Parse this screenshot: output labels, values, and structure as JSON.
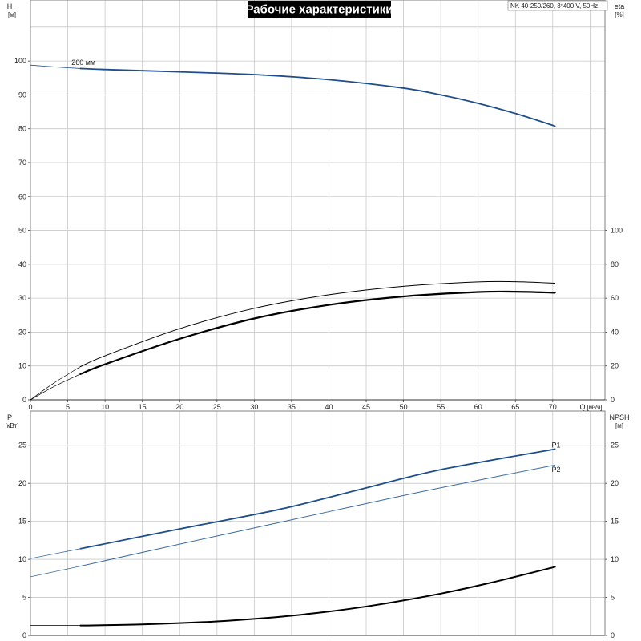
{
  "title": "Рабочие характеристики",
  "model": "NK 40-250/260, 3*400 V, 50Hz",
  "colors": {
    "blue": "#1f4e8c",
    "blue_light": "#3a6aa0",
    "black": "#000000",
    "grid": "#c8c8c8",
    "frame": "#808080"
  },
  "chart_data": [
    {
      "type": "line",
      "panel": "upper",
      "x_label": "Q",
      "x_unit": "[м³/ч]",
      "x_ticks": [
        "0",
        "5",
        "10",
        "15",
        "20",
        "25",
        "30",
        "35",
        "40",
        "45",
        "50",
        "55",
        "60",
        "65",
        "70"
      ],
      "xlim": [
        0,
        77
      ],
      "y_label": "H",
      "y_unit": "[м]",
      "y_ticks": [
        "0",
        "10",
        "20",
        "30",
        "40",
        "50",
        "60",
        "70",
        "80",
        "90",
        "100"
      ],
      "ylim": [
        0,
        118
      ],
      "y2_label": "eta",
      "y2_unit": "[%]",
      "y2_ticks": [
        "0",
        "20",
        "40",
        "60",
        "80",
        "100"
      ],
      "y2lim": [
        0,
        236
      ],
      "grid": true,
      "annotations": [
        {
          "text": "260 мм",
          "x": 5.5,
          "y": 99.5
        }
      ],
      "series": [
        {
          "key": "H",
          "axis": "left",
          "color": "#1f4e8c",
          "width": 1.8,
          "x": [
            6.7,
            10,
            20,
            30,
            40,
            50,
            55,
            60,
            65,
            70.3
          ],
          "y": [
            97.8,
            97.5,
            96.8,
            96.0,
            94.5,
            92.0,
            90.0,
            87.5,
            84.5,
            80.8
          ]
        },
        {
          "key": "H_ext",
          "axis": "left",
          "color": "#1f4e8c",
          "width": 0.8,
          "x": [
            0,
            3,
            6.7
          ],
          "y": [
            98.8,
            98.3,
            97.8
          ]
        },
        {
          "key": "eta_thin",
          "axis": "right",
          "color": "#000000",
          "width": 1.0,
          "x": [
            6.7,
            10,
            20,
            30,
            40,
            50,
            60,
            65,
            70.3
          ],
          "y": [
            19.6,
            26,
            42,
            54,
            62,
            67,
            69.6,
            69.7,
            68.8
          ]
        },
        {
          "key": "eta_thin_ext",
          "axis": "right",
          "color": "#000000",
          "width": 0.7,
          "x": [
            0,
            3,
            6.7
          ],
          "y": [
            0,
            9.5,
            19.6
          ]
        },
        {
          "key": "eta_bold",
          "axis": "right",
          "color": "#000000",
          "width": 2.2,
          "x": [
            6.7,
            10,
            20,
            30,
            40,
            50,
            60,
            65,
            70.3
          ],
          "y": [
            15.2,
            21,
            36,
            48,
            56,
            61,
            63.6,
            63.8,
            63.2
          ]
        },
        {
          "key": "eta_bold_ext",
          "axis": "right",
          "color": "#000000",
          "width": 0.7,
          "x": [
            0,
            3,
            6.7
          ],
          "y": [
            0,
            7.5,
            15.2
          ]
        }
      ]
    },
    {
      "type": "line",
      "panel": "lower",
      "x_ticks": [],
      "xlim": [
        0,
        77
      ],
      "y_label": "P",
      "y_unit": "[кВт]",
      "y_ticks": [
        "0",
        "5",
        "10",
        "15",
        "20",
        "25"
      ],
      "ylim": [
        0,
        29.5
      ],
      "y2_label": "NPSH",
      "y2_unit": "[м]",
      "y2_ticks": [
        "0",
        "5",
        "10",
        "15",
        "20",
        "25"
      ],
      "y2lim": [
        0,
        29.5
      ],
      "grid": true,
      "labels": [
        {
          "text": "P1",
          "x": 70.5,
          "y": 25.0,
          "color": "#1f4e8c"
        },
        {
          "text": "P2",
          "x": 70.5,
          "y": 21.8,
          "color": "#1f4e8c"
        }
      ],
      "series": [
        {
          "key": "P1",
          "name": "P1",
          "axis": "left",
          "color": "#1f4e8c",
          "width": 1.8,
          "x": [
            6.7,
            20,
            33.5,
            45,
            55,
            70.3
          ],
          "y": [
            11.4,
            14.0,
            16.6,
            19.4,
            21.8,
            24.5
          ]
        },
        {
          "key": "P1_ext",
          "axis": "left",
          "color": "#3a6aa0",
          "width": 0.8,
          "x": [
            0,
            6.7
          ],
          "y": [
            10.1,
            11.4
          ]
        },
        {
          "key": "P2",
          "name": "P2",
          "axis": "left",
          "color": "#3a6aa0",
          "width": 1.0,
          "x": [
            6.7,
            20,
            35,
            50,
            60,
            70.3
          ],
          "y": [
            9.1,
            12.0,
            15.2,
            18.4,
            20.4,
            22.4
          ]
        },
        {
          "key": "P2_ext",
          "axis": "left",
          "color": "#3a6aa0",
          "width": 0.8,
          "x": [
            0,
            6.7
          ],
          "y": [
            7.7,
            9.1
          ]
        },
        {
          "key": "NPSH",
          "axis": "right",
          "color": "#000000",
          "width": 2.0,
          "x": [
            6.7,
            15,
            25,
            35,
            45,
            55,
            62,
            70.3
          ],
          "y": [
            1.3,
            1.45,
            1.85,
            2.6,
            3.8,
            5.5,
            7.0,
            9.0
          ]
        },
        {
          "key": "NPSH_ext",
          "axis": "right",
          "color": "#000000",
          "width": 0.8,
          "x": [
            0,
            6.7
          ],
          "y": [
            1.3,
            1.3
          ]
        }
      ]
    }
  ]
}
